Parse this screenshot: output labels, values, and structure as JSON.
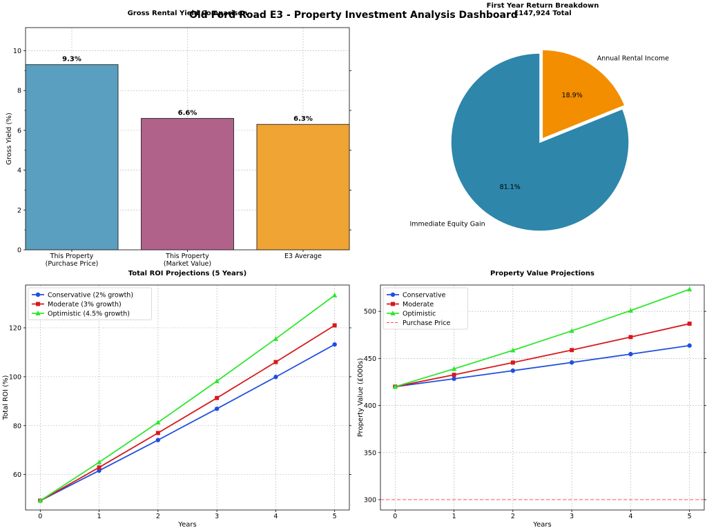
{
  "dashboard_title": "Old Ford Road E3 - Property Investment Analysis Dashboard",
  "chart_data": [
    {
      "id": "yield",
      "type": "bar",
      "title": "Gross Rental Yield Comparison",
      "categories": [
        "This Property\n(Purchase Price)",
        "This Property\n(Market Value)",
        "E3 Average"
      ],
      "values": [
        9.3,
        6.6,
        6.3
      ],
      "value_labels": [
        "9.3%",
        "6.6%",
        "6.3%"
      ],
      "colors": [
        "#5a9fbf",
        "#b0628a",
        "#f0a433"
      ],
      "xlabel": "",
      "ylabel": "Gross Yield (%)",
      "ylim": [
        0,
        11.16
      ],
      "yticks": [
        0,
        2,
        4,
        6,
        8,
        10
      ],
      "grid": true
    },
    {
      "id": "breakdown",
      "type": "pie",
      "title": "First Year Return Breakdown",
      "subtitle": "£147,924 Total",
      "slices": [
        {
          "label": "Annual Rental Income",
          "value": 18.9,
          "pct_label": "18.9%",
          "color": "#f28e00",
          "explode": true
        },
        {
          "label": "Immediate Equity Gain",
          "value": 81.1,
          "pct_label": "81.1%",
          "color": "#2e86ab",
          "explode": false
        }
      ]
    },
    {
      "id": "roi",
      "type": "line",
      "title": "Total ROI Projections (5 Years)",
      "xlabel": "Years",
      "ylabel": "Total ROI (%)",
      "x": [
        0,
        1,
        2,
        3,
        4,
        5
      ],
      "xlim": [
        -0.25,
        5.25
      ],
      "ylim": [
        45.5,
        137.5
      ],
      "yticks": [
        60,
        80,
        100,
        120
      ],
      "legend": "top-left",
      "grid": true,
      "series": [
        {
          "name": "Conservative (2% growth)",
          "values": [
            49.3,
            61.6,
            74.1,
            86.9,
            99.9,
            113.2
          ],
          "color": "#1f4fe0",
          "marker": "circle"
        },
        {
          "name": "Moderate (3% growth)",
          "values": [
            49.3,
            62.9,
            77.0,
            91.3,
            106.0,
            121.0
          ],
          "color": "#d7191c",
          "marker": "square"
        },
        {
          "name": "Optimistic (4.5% growth)",
          "values": [
            49.3,
            65.0,
            81.3,
            98.2,
            115.5,
            133.3
          ],
          "color": "#2ee62e",
          "marker": "triangle"
        }
      ]
    },
    {
      "id": "value",
      "type": "line",
      "title": "Property Value Projections",
      "xlabel": "Years",
      "ylabel": "Property Value (£000s)",
      "x": [
        0,
        1,
        2,
        3,
        4,
        5
      ],
      "xlim": [
        -0.25,
        5.25
      ],
      "ylim": [
        289,
        528
      ],
      "yticks": [
        300,
        350,
        400,
        450,
        500
      ],
      "legend": "top-left",
      "grid": true,
      "series": [
        {
          "name": "Conservative",
          "values": [
            420,
            428.4,
            437.0,
            445.7,
            454.6,
            463.7
          ],
          "color": "#1f4fe0",
          "marker": "circle"
        },
        {
          "name": "Moderate",
          "values": [
            420,
            432.6,
            445.6,
            458.9,
            472.7,
            486.9
          ],
          "color": "#d7191c",
          "marker": "square"
        },
        {
          "name": "Optimistic",
          "values": [
            420,
            438.9,
            458.6,
            479.3,
            500.9,
            523.4
          ],
          "color": "#2ee62e",
          "marker": "triangle"
        }
      ],
      "reference_line": {
        "name": "Purchase Price",
        "value": 300,
        "color": "#ff4d4d"
      }
    }
  ]
}
